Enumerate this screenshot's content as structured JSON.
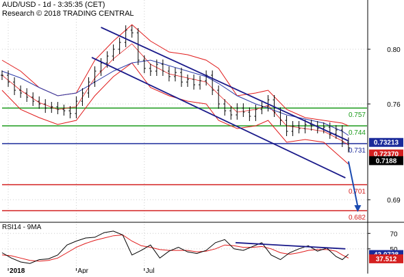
{
  "header": {
    "title": "AUD/USD - 1d - 3:35:35 (CET)",
    "research": "Research © 2018 TRADING CENTRAL"
  },
  "chart_data": [
    {
      "type": "line",
      "name": "price",
      "y_ticks": [
        "0.80",
        "0.76",
        "0.69"
      ],
      "ylim": [
        0.675,
        0.825
      ],
      "x_ticks": [
        "2018",
        "Apr",
        "Jul"
      ],
      "x_tick_days": [
        4,
        48,
        92
      ],
      "levels": [
        {
          "value": 0.757,
          "label": "0.757",
          "color": "#1a9a1a"
        },
        {
          "value": 0.744,
          "label": "0.744",
          "color": "#1a9a1a"
        },
        {
          "value": 0.731,
          "label": "0.731",
          "color": "#1a2a9a"
        },
        {
          "value": 0.701,
          "label": "0.701",
          "color": "#d42020"
        },
        {
          "value": 0.682,
          "label": "0.682",
          "color": "#d42020"
        }
      ],
      "price_tags": [
        {
          "value": 0.73213,
          "label": "0.73213",
          "bg": "#1a2a9a",
          "fg": "#ffffff"
        },
        {
          "value": 0.7237,
          "label": "0.72370",
          "bg": "#d42020",
          "fg": "#ffffff"
        },
        {
          "value": 0.7188,
          "label": "0.7188",
          "bg": "#000000",
          "fg": "#ffffff"
        }
      ],
      "price": {
        "x": [
          0,
          4,
          8,
          12,
          16,
          20,
          24,
          28,
          32,
          36,
          40,
          44,
          48,
          52,
          56,
          60,
          64,
          68,
          72,
          76,
          80,
          84,
          88,
          92,
          96,
          100,
          104,
          108,
          112,
          116,
          120,
          124,
          128,
          132,
          136,
          140,
          144,
          148,
          152,
          156,
          160,
          164,
          168,
          172,
          176,
          180,
          184,
          188,
          192,
          196,
          200,
          204,
          208,
          212,
          216,
          220,
          224
        ],
        "y": [
          0.781,
          0.776,
          0.77,
          0.768,
          0.765,
          0.762,
          0.76,
          0.757,
          0.758,
          0.756,
          0.755,
          0.753,
          0.762,
          0.768,
          0.776,
          0.784,
          0.79,
          0.795,
          0.8,
          0.805,
          0.814,
          0.812,
          0.792,
          0.786,
          0.784,
          0.789,
          0.784,
          0.78,
          0.783,
          0.776,
          0.778,
          0.774,
          0.777,
          0.781,
          0.77,
          0.76,
          0.755,
          0.752,
          0.757,
          0.754,
          0.751,
          0.756,
          0.758,
          0.763,
          0.754,
          0.748,
          0.74,
          0.744,
          0.742,
          0.745,
          0.744,
          0.742,
          0.743,
          0.738,
          0.741,
          0.732,
          0.728
        ]
      },
      "bollinger": {
        "upper": {
          "x": [
            0,
            12,
            24,
            36,
            48,
            60,
            72,
            84,
            96,
            108,
            120,
            132,
            140,
            152,
            164,
            172,
            184,
            196,
            208,
            220,
            224
          ],
          "y": [
            0.792,
            0.784,
            0.772,
            0.766,
            0.768,
            0.792,
            0.806,
            0.818,
            0.806,
            0.798,
            0.796,
            0.792,
            0.786,
            0.766,
            0.768,
            0.77,
            0.756,
            0.75,
            0.748,
            0.746,
            0.744
          ]
        },
        "lower": {
          "x": [
            0,
            12,
            24,
            36,
            48,
            60,
            72,
            84,
            96,
            108,
            120,
            132,
            140,
            152,
            164,
            172,
            184,
            196,
            208,
            220,
            224
          ],
          "y": [
            0.77,
            0.756,
            0.75,
            0.745,
            0.748,
            0.766,
            0.78,
            0.79,
            0.772,
            0.766,
            0.762,
            0.76,
            0.748,
            0.742,
            0.744,
            0.748,
            0.732,
            0.734,
            0.732,
            0.72,
            0.716
          ]
        },
        "middle": {
          "x": [
            0,
            12,
            24,
            36,
            48,
            60,
            72,
            84,
            96,
            108,
            120,
            132,
            140,
            152,
            164,
            172,
            184,
            196,
            208,
            220,
            224
          ],
          "y": [
            0.781,
            0.77,
            0.761,
            0.756,
            0.758,
            0.779,
            0.793,
            0.804,
            0.789,
            0.782,
            0.779,
            0.776,
            0.767,
            0.754,
            0.756,
            0.759,
            0.744,
            0.742,
            0.74,
            0.733,
            0.73
          ]
        }
      },
      "moving_average": {
        "x": [
          0,
          12,
          24,
          36,
          48,
          60,
          72,
          84,
          96,
          108,
          120,
          132,
          140,
          152,
          164,
          172,
          184,
          196,
          208,
          220,
          224
        ],
        "y": [
          0.784,
          0.779,
          0.772,
          0.766,
          0.768,
          0.776,
          0.784,
          0.79,
          0.792,
          0.788,
          0.784,
          0.78,
          0.775,
          0.766,
          0.76,
          0.757,
          0.752,
          0.749,
          0.746,
          0.74,
          0.737
        ]
      },
      "channel": {
        "upper": {
          "x": [
            64,
            224
          ],
          "y": [
            0.816,
            0.733
          ]
        },
        "lower": {
          "x": [
            58,
            222
          ],
          "y": [
            0.794,
            0.706
          ]
        }
      },
      "forecast": {
        "x": [
          224,
          230
        ],
        "y": [
          0.718,
          0.681
        ]
      }
    },
    {
      "type": "line",
      "name": "RSI14 - 9MA",
      "title": "RSI14 - 9MA",
      "ylim": [
        25,
        80
      ],
      "y_ticks": [
        "70",
        "50"
      ],
      "tags": [
        {
          "value": 43.07,
          "label": "43.0728",
          "bg": "#1a2a9a",
          "fg": "#ffffff"
        },
        {
          "value": 37.51,
          "label": "37.512",
          "bg": "#d42020",
          "fg": "#ffffff"
        }
      ],
      "rsi": {
        "x": [
          0,
          6,
          12,
          18,
          24,
          30,
          36,
          42,
          48,
          54,
          60,
          66,
          72,
          78,
          84,
          90,
          96,
          102,
          108,
          114,
          120,
          126,
          132,
          138,
          144,
          150,
          156,
          162,
          168,
          174,
          180,
          186,
          192,
          198,
          204,
          210,
          216,
          220,
          224
        ],
        "y": [
          45,
          38,
          33,
          31,
          36,
          37,
          42,
          55,
          60,
          64,
          65,
          71,
          73,
          68,
          42,
          48,
          55,
          38,
          47,
          52,
          46,
          44,
          48,
          58,
          62,
          50,
          48,
          53,
          58,
          42,
          36,
          45,
          50,
          54,
          47,
          51,
          40,
          36,
          43
        ]
      },
      "rsi_ma": {
        "x": [
          0,
          6,
          12,
          18,
          24,
          30,
          36,
          42,
          48,
          54,
          60,
          66,
          72,
          78,
          84,
          90,
          96,
          102,
          108,
          114,
          120,
          126,
          132,
          138,
          144,
          150,
          156,
          162,
          168,
          174,
          180,
          186,
          192,
          198,
          204,
          210,
          216,
          220,
          224
        ],
        "y": [
          42,
          41,
          38,
          35,
          34,
          35,
          38,
          45,
          52,
          57,
          61,
          64,
          67,
          68,
          60,
          54,
          52,
          49,
          48,
          48,
          48,
          46,
          47,
          50,
          55,
          54,
          52,
          52,
          53,
          50,
          45,
          43,
          45,
          48,
          49,
          49,
          47,
          42,
          38
        ]
      },
      "trendline": {
        "x": [
          151,
          222
        ],
        "y": [
          58,
          50
        ]
      }
    }
  ],
  "colors": {
    "price": "#000000",
    "bollinger": "#e01818",
    "moving_average": "#2a3aa8",
    "channel": "#1a1a8a",
    "forecast": "#1a4ab0",
    "rsi": "#000000",
    "rsi_ma": "#e01818"
  }
}
